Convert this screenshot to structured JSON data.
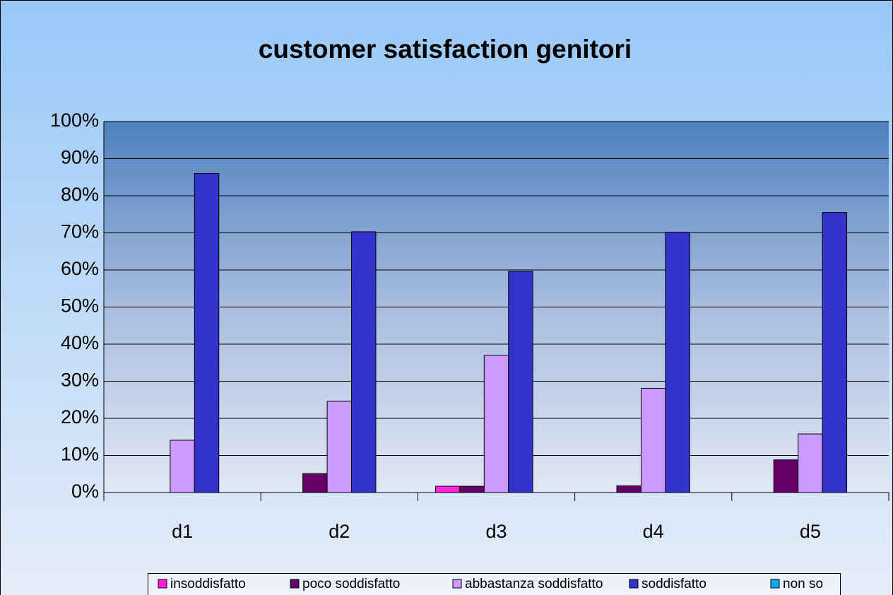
{
  "chart_data": {
    "type": "bar",
    "title": "customer satisfaction genitori",
    "categories": [
      "d1",
      "d2",
      "d3",
      "d4",
      "d5"
    ],
    "series": [
      {
        "name": "insoddisfatto",
        "color": "#ff22dd",
        "values": [
          0,
          0,
          1.7,
          0,
          0
        ]
      },
      {
        "name": "poco soddisfatto",
        "color": "#660066",
        "values": [
          0,
          5.1,
          1.7,
          1.8,
          8.8
        ]
      },
      {
        "name": "abbastanza soddisfatto",
        "color": "#cc99ff",
        "values": [
          14.1,
          24.6,
          37,
          28.1,
          15.8
        ]
      },
      {
        "name": "soddisfatto",
        "color": "#3333cc",
        "values": [
          86,
          70.3,
          59.6,
          70.2,
          75.5
        ]
      },
      {
        "name": "non so",
        "color": "#11aaee",
        "values": [
          0,
          0,
          0,
          0,
          0
        ]
      }
    ],
    "ylim": [
      0,
      100
    ],
    "yticks": [
      {
        "value": 0,
        "label": "0%"
      },
      {
        "value": 10,
        "label": "10%"
      },
      {
        "value": 20,
        "label": "20%"
      },
      {
        "value": 30,
        "label": "30%"
      },
      {
        "value": 40,
        "label": "40%"
      },
      {
        "value": 50,
        "label": "50%"
      },
      {
        "value": 60,
        "label": "60%"
      },
      {
        "value": 70,
        "label": "70%"
      },
      {
        "value": 80,
        "label": "80%"
      },
      {
        "value": 90,
        "label": "90%"
      },
      {
        "value": 100,
        "label": "100%"
      }
    ],
    "grid": true,
    "legend": "bottom"
  }
}
